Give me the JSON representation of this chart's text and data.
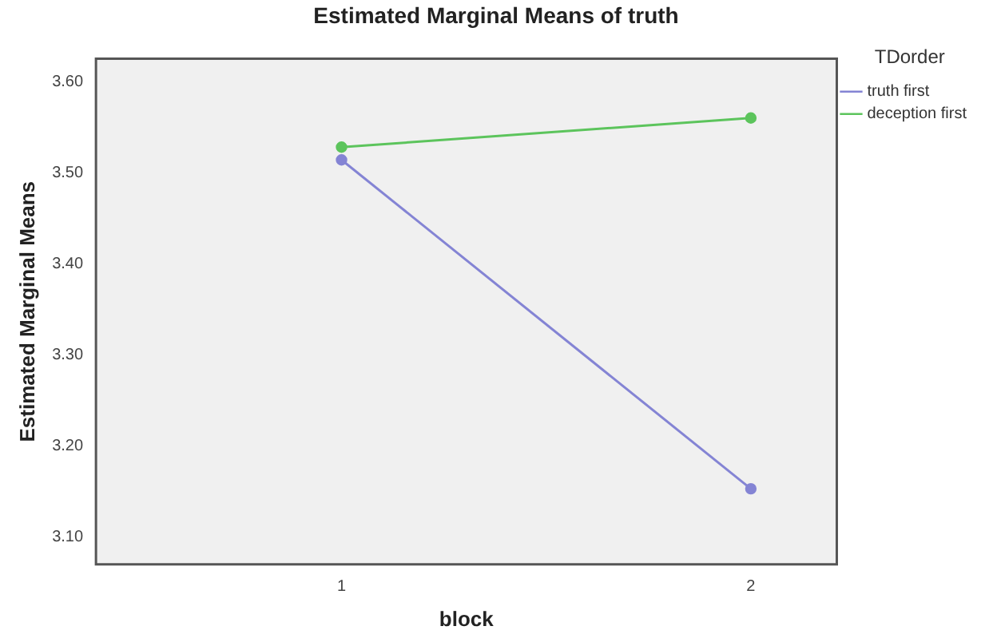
{
  "chart_data": {
    "type": "line",
    "title": "Estimated Marginal Means of truth",
    "xlabel": "block",
    "ylabel": "Estimated Marginal Means",
    "legend_title": "TDorder",
    "x": [
      1,
      2
    ],
    "xlim": [
      0.4,
      2.21
    ],
    "xticks": [
      1,
      2
    ],
    "series": [
      {
        "name": "truth first",
        "color": "#8484d4",
        "values": [
          3.514,
          3.153
        ]
      },
      {
        "name": "deception first",
        "color": "#5cc45c",
        "values": [
          3.528,
          3.56
        ]
      }
    ],
    "ylim": [
      3.07,
      3.625
    ],
    "yticks": [
      {
        "value": 3.1,
        "label": "3.10"
      },
      {
        "value": 3.2,
        "label": "3.20"
      },
      {
        "value": 3.3,
        "label": "3.30"
      },
      {
        "value": 3.4,
        "label": "3.40"
      },
      {
        "value": 3.5,
        "label": "3.50"
      },
      {
        "value": 3.6,
        "label": "3.60"
      }
    ],
    "grid": false,
    "legend": "right",
    "marker": "circle",
    "line_style": "solid"
  }
}
